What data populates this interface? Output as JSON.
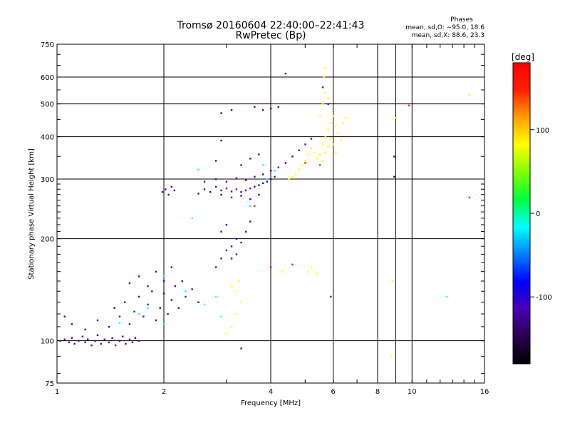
{
  "chart_data": {
    "type": "scatter",
    "title": "Tromsø 20160604 22:40:00–22:41:43",
    "subtitle": "RwPretec (Bp)",
    "xlabel": "Frequency [MHz]",
    "ylabel": "Stationary phase Virtual Height [km]",
    "x_scale": "log",
    "y_scale": "log",
    "xlim": [
      1,
      16
    ],
    "ylim": [
      75,
      750
    ],
    "x_ticks": [
      1,
      2,
      4,
      6,
      8,
      10,
      16
    ],
    "x_gridlines": [
      2,
      4,
      6,
      8,
      9,
      10
    ],
    "y_ticks": [
      75,
      100,
      200,
      300,
      400,
      500,
      600,
      750
    ],
    "y_gridlines": [
      100,
      200,
      300,
      400,
      500,
      600
    ],
    "grid": true,
    "phase_info": {
      "heading": "Phases",
      "line_o": "mean, sd,O: −95.0, 18.6",
      "line_x": "mean, sd,X:  88.6, 23.3"
    },
    "colorbar": {
      "label": "[deg]",
      "range": [
        -180,
        180
      ],
      "ticks": [
        100,
        0,
        -100
      ],
      "colormap": [
        "#000000",
        "#2a0050",
        "#4a00b0",
        "#0000ff",
        "#0080ff",
        "#00ffff",
        "#00ff40",
        "#80ff00",
        "#ffff00",
        "#ffa000",
        "#ff2000",
        "#ff0000"
      ]
    },
    "series": [
      {
        "phase": -110,
        "points": [
          [
            1.02,
            100
          ],
          [
            1.05,
            101
          ],
          [
            1.08,
            99
          ],
          [
            1.1,
            102
          ],
          [
            1.12,
            98
          ],
          [
            1.15,
            100
          ],
          [
            1.18,
            103
          ],
          [
            1.2,
            99
          ],
          [
            1.22,
            101
          ],
          [
            1.25,
            97
          ],
          [
            1.28,
            100
          ],
          [
            1.3,
            104
          ],
          [
            1.33,
            98
          ],
          [
            1.36,
            101
          ],
          [
            1.4,
            99
          ],
          [
            1.43,
            102
          ],
          [
            1.46,
            97
          ],
          [
            1.5,
            100
          ],
          [
            1.53,
            103
          ],
          [
            1.56,
            98
          ],
          [
            1.6,
            101
          ],
          [
            1.63,
            99
          ],
          [
            1.66,
            102
          ],
          [
            1.7,
            100
          ],
          [
            1.05,
            118
          ],
          [
            1.1,
            112
          ],
          [
            1.2,
            108
          ],
          [
            1.3,
            115
          ],
          [
            1.4,
            110
          ],
          [
            1.45,
            125
          ],
          [
            1.5,
            118
          ],
          [
            1.55,
            130
          ],
          [
            1.6,
            112
          ],
          [
            1.65,
            122
          ],
          [
            1.7,
            135
          ],
          [
            1.75,
            118
          ],
          [
            1.8,
            128
          ],
          [
            1.85,
            140
          ],
          [
            1.9,
            115
          ],
          [
            1.95,
            125
          ],
          [
            2.0,
            138
          ],
          [
            2.05,
            120
          ],
          [
            2.1,
            132
          ],
          [
            2.15,
            145
          ],
          [
            2.2,
            125
          ],
          [
            2.25,
            150
          ],
          [
            2.3,
            135
          ],
          [
            2.4,
            142
          ],
          [
            2.5,
            130
          ],
          [
            1.6,
            148
          ],
          [
            1.7,
            155
          ],
          [
            1.8,
            145
          ],
          [
            1.9,
            160
          ],
          [
            2.0,
            150
          ],
          [
            2.1,
            165
          ],
          [
            1.98,
            275
          ],
          [
            2.02,
            280
          ],
          [
            2.06,
            270
          ],
          [
            2.1,
            285
          ],
          [
            2.14,
            278
          ],
          [
            2.5,
            272
          ],
          [
            2.6,
            280
          ],
          [
            2.7,
            275
          ],
          [
            2.8,
            285
          ],
          [
            2.9,
            278
          ],
          [
            3.0,
            282
          ],
          [
            3.1,
            276
          ],
          [
            3.2,
            280
          ],
          [
            3.3,
            275
          ],
          [
            3.4,
            278
          ],
          [
            3.5,
            282
          ],
          [
            3.6,
            285
          ],
          [
            3.7,
            288
          ],
          [
            3.8,
            292
          ],
          [
            3.9,
            295
          ],
          [
            4.0,
            300
          ],
          [
            4.1,
            305
          ],
          [
            2.6,
            295
          ],
          [
            2.8,
            300
          ],
          [
            3.0,
            295
          ],
          [
            3.2,
            302
          ],
          [
            3.4,
            298
          ],
          [
            3.6,
            305
          ],
          [
            3.8,
            310
          ],
          [
            4.0,
            318
          ],
          [
            4.2,
            325
          ],
          [
            4.4,
            335
          ],
          [
            4.6,
            350
          ],
          [
            4.8,
            365
          ],
          [
            5.0,
            380
          ],
          [
            5.2,
            395
          ],
          [
            2.8,
            340
          ],
          [
            2.9,
            390
          ],
          [
            3.3,
            330
          ],
          [
            3.5,
            345
          ],
          [
            3.7,
            355
          ],
          [
            2.9,
            470
          ],
          [
            3.1,
            480
          ],
          [
            3.6,
            490
          ],
          [
            3.8,
            480
          ],
          [
            4.0,
            485
          ],
          [
            4.2,
            490
          ],
          [
            4.4,
            615
          ],
          [
            5.6,
            560
          ],
          [
            5.8,
            500
          ],
          [
            2.9,
            270
          ],
          [
            3.1,
            265
          ],
          [
            3.3,
            268
          ],
          [
            3.5,
            262
          ],
          [
            3.7,
            270
          ],
          [
            2.8,
            165
          ],
          [
            2.9,
            175
          ],
          [
            3.0,
            185
          ],
          [
            3.1,
            190
          ],
          [
            3.2,
            180
          ],
          [
            3.3,
            195
          ],
          [
            3.4,
            210
          ],
          [
            3.5,
            225
          ],
          [
            2.9,
            210
          ],
          [
            3.0,
            220
          ],
          [
            3.3,
            95
          ],
          [
            5.9,
            135
          ],
          [
            8.9,
            350
          ],
          [
            8.9,
            305
          ],
          [
            3.2,
            200
          ],
          [
            3.1,
            175
          ]
        ]
      },
      {
        "phase": 95,
        "points": [
          [
            4.5,
            300
          ],
          [
            4.6,
            305
          ],
          [
            4.7,
            310
          ],
          [
            4.8,
            320
          ],
          [
            4.9,
            330
          ],
          [
            5.0,
            340
          ],
          [
            5.1,
            355
          ],
          [
            5.2,
            370
          ],
          [
            5.3,
            360
          ],
          [
            5.4,
            345
          ],
          [
            5.5,
            330
          ],
          [
            5.5,
            355
          ],
          [
            5.6,
            380
          ],
          [
            5.7,
            400
          ],
          [
            5.8,
            420
          ],
          [
            5.9,
            440
          ],
          [
            6.0,
            460
          ],
          [
            6.1,
            430
          ],
          [
            6.2,
            410
          ],
          [
            6.3,
            390
          ],
          [
            5.6,
            340
          ],
          [
            5.7,
            360
          ],
          [
            5.8,
            375
          ],
          [
            5.9,
            395
          ],
          [
            6.0,
            380
          ],
          [
            6.1,
            360
          ],
          [
            5.5,
            460
          ],
          [
            5.6,
            500
          ],
          [
            5.7,
            540
          ],
          [
            5.65,
            600
          ],
          [
            5.7,
            640
          ],
          [
            5.8,
            520
          ],
          [
            6.4,
            440
          ],
          [
            6.5,
            455
          ],
          [
            3.2,
            140
          ],
          [
            3.3,
            130
          ],
          [
            3.25,
            150
          ],
          [
            3.1,
            145
          ],
          [
            3.2,
            120
          ],
          [
            3.0,
            105
          ],
          [
            3.1,
            110
          ],
          [
            4.3,
            160
          ],
          [
            4.6,
            168
          ],
          [
            5.1,
            160
          ],
          [
            5.2,
            165
          ],
          [
            5.4,
            158
          ],
          [
            8.8,
            150
          ],
          [
            8.7,
            90
          ],
          [
            9.0,
            455
          ],
          [
            14.5,
            530
          ]
        ]
      },
      {
        "phase": -20,
        "points": [
          [
            1.5,
            113
          ],
          [
            1.7,
            120
          ],
          [
            2.0,
            112
          ],
          [
            2.3,
            140
          ],
          [
            2.6,
            128
          ],
          [
            2.8,
            135
          ],
          [
            2.9,
            118
          ],
          [
            3.5,
            250
          ],
          [
            2.4,
            230
          ],
          [
            2.0,
            155
          ],
          [
            1.8,
            125
          ],
          [
            12.5,
            135
          ],
          [
            2.5,
            320
          ],
          [
            3.8,
            330
          ],
          [
            3.9,
            300
          ],
          [
            4.1,
            318
          ]
        ]
      },
      {
        "phase": 145,
        "points": [
          [
            9.8,
            495
          ],
          [
            14.5,
            265
          ],
          [
            3.6,
            250
          ],
          [
            4.6,
            168
          ],
          [
            4.0,
            165
          ],
          [
            5.0,
            335
          ],
          [
            5.5,
            330
          ]
        ]
      }
    ]
  }
}
